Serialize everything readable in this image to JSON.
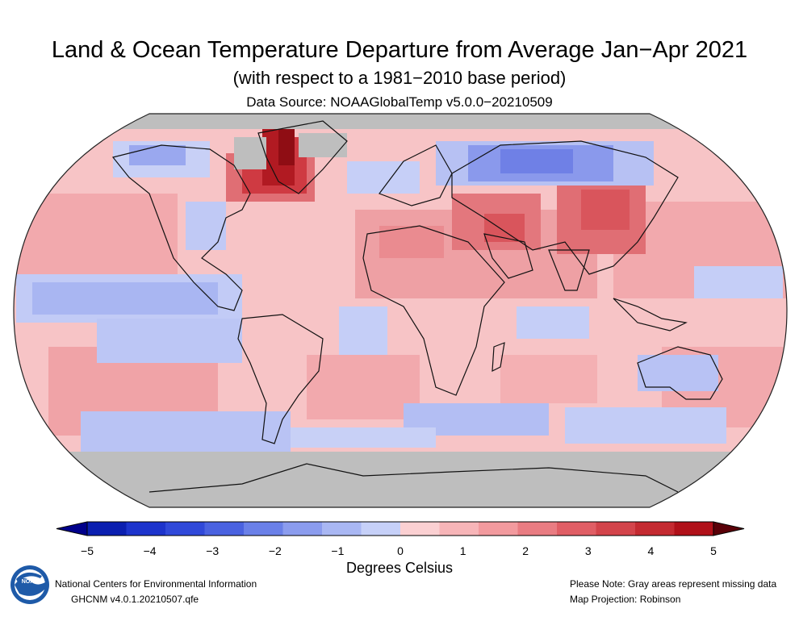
{
  "title": "Land & Ocean Temperature Departure from Average Jan−Apr 2021",
  "subtitle": "(with respect to a 1981−2010 base period)",
  "source": "Data Source: NOAAGlobalTemp v5.0.0−20210509",
  "colorbar": {
    "label": "Degrees Celsius",
    "min": -5,
    "max": 5,
    "ticks": [
      "−5",
      "−4",
      "−3",
      "−2",
      "−1",
      "0",
      "1",
      "2",
      "3",
      "4",
      "5"
    ],
    "colors": [
      "#0b1fb0",
      "#1d34cc",
      "#3049d9",
      "#4a62e0",
      "#6a80e8",
      "#8b9cee",
      "#a9b7f3",
      "#c6d0f8",
      "#fbd0d2",
      "#f7b5b8",
      "#f29a9e",
      "#e97c82",
      "#e05e65",
      "#d3444b",
      "#c42a31",
      "#b01019"
    ],
    "under_color": "#00008b",
    "over_color": "#5a0008",
    "missing_color": "#bebebe"
  },
  "map": {
    "projection": "Robinson",
    "missing_regions": [
      "Arctic cap",
      "Antarctica",
      "parts of Greenland"
    ],
    "anomaly_regions": [
      {
        "region": "Northeast Canada / Baffin Bay",
        "anomaly_c": 4.0
      },
      {
        "region": "Central Asia / Mongolia",
        "anomaly_c": 2.5
      },
      {
        "region": "Middle East / Arabia",
        "anomaly_c": 2.0
      },
      {
        "region": "Northern Russia / Siberia",
        "anomaly_c": -2.0
      },
      {
        "region": "Eastern equatorial Pacific",
        "anomaly_c": -1.0
      },
      {
        "region": "Southern Ocean",
        "anomaly_c": -1.0
      }
    ]
  },
  "footer": {
    "org": "National Centers for Environmental Information",
    "version": "GHCNM v4.0.1.20210507.qfe",
    "note": "Please Note: Gray areas represent missing data",
    "projection": "Map Projection: Robinson"
  },
  "logo_text": "NOAA"
}
